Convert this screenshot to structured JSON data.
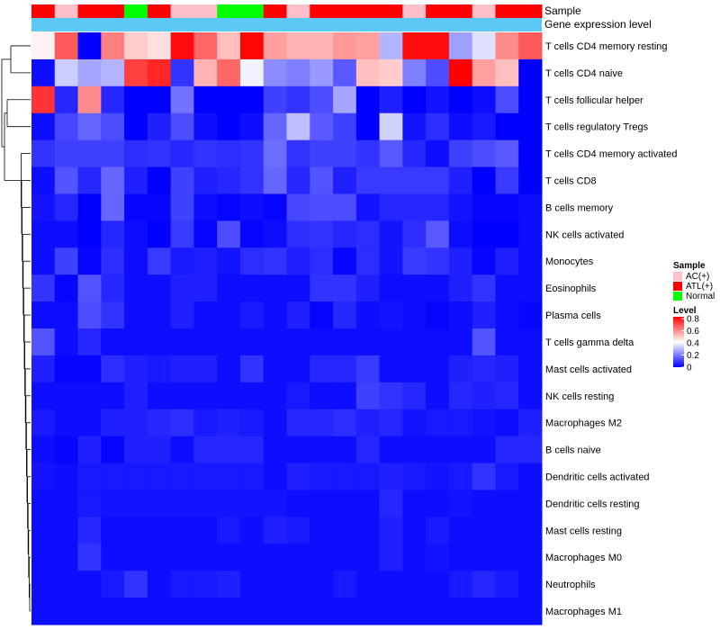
{
  "chart_data": {
    "type": "heatmap",
    "title": "",
    "annotation_labels": {
      "sample": "Sample",
      "gene_expression": "Gene expression level"
    },
    "sample_groups": [
      "ATL(+)",
      "AC(+)",
      "ATL(+)",
      "ATL(+)",
      "Normal",
      "ATL(+)",
      "AC(+)",
      "AC(+)",
      "Normal",
      "Normal",
      "ATL(+)",
      "AC(+)",
      "ATL(+)",
      "ATL(+)",
      "ATL(+)",
      "ATL(+)",
      "AC(+)",
      "ATL(+)",
      "ATL(+)",
      "AC(+)",
      "ATL(+)",
      "ATL(+)"
    ],
    "gene_expression_color": "#5bc8f5",
    "rows": [
      "T cells CD4 memory resting",
      "T cells CD4 naive",
      "T cells follicular helper",
      "T cells regulatory  Tregs",
      "T cells CD4 memory activated",
      "T cells CD8",
      "B cells memory",
      "NK cells activated",
      "Monocytes",
      "Eosinophils",
      "Plasma cells",
      "T cells gamma delta",
      "Mast cells activated",
      "NK cells resting",
      "Macrophages M2",
      "B cells naive",
      "Dendritic cells activated",
      "Dendritic cells resting",
      "Mast cells resting",
      "Macrophages M0",
      "Neutrophils",
      "Macrophages M1"
    ],
    "values": [
      [
        0.42,
        0.66,
        0.0,
        0.6,
        0.48,
        0.45,
        0.78,
        0.64,
        0.5,
        0.79,
        0.55,
        0.52,
        0.52,
        0.56,
        0.55,
        0.28,
        0.78,
        0.78,
        0.25,
        0.35,
        0.58,
        0.66
      ],
      [
        0.02,
        0.32,
        0.26,
        0.28,
        0.7,
        0.74,
        0.08,
        0.52,
        0.64,
        0.38,
        0.22,
        0.2,
        0.24,
        0.14,
        0.5,
        0.48,
        0.2,
        0.12,
        0.8,
        0.55,
        0.5,
        0.0
      ],
      [
        0.72,
        0.06,
        0.58,
        0.06,
        0.0,
        0.0,
        0.18,
        0.0,
        0.0,
        0.0,
        0.1,
        0.08,
        0.12,
        0.26,
        0.0,
        0.05,
        0.0,
        0.03,
        0.0,
        0.02,
        0.12,
        0.0
      ],
      [
        0.02,
        0.11,
        0.16,
        0.12,
        0.0,
        0.05,
        0.12,
        0.02,
        0.0,
        0.02,
        0.16,
        0.3,
        0.14,
        0.1,
        0.0,
        0.33,
        0.03,
        0.07,
        0.02,
        0.04,
        0.0,
        0.0
      ],
      [
        0.08,
        0.1,
        0.1,
        0.1,
        0.07,
        0.08,
        0.06,
        0.08,
        0.07,
        0.08,
        0.17,
        0.08,
        0.1,
        0.1,
        0.08,
        0.14,
        0.06,
        0.02,
        0.1,
        0.12,
        0.14,
        0.0
      ],
      [
        0.02,
        0.13,
        0.06,
        0.16,
        0.05,
        0.0,
        0.1,
        0.05,
        0.06,
        0.08,
        0.16,
        0.06,
        0.13,
        0.05,
        0.09,
        0.09,
        0.09,
        0.09,
        0.05,
        0.0,
        0.09,
        0.0
      ],
      [
        0.03,
        0.06,
        0.0,
        0.16,
        0.01,
        0.01,
        0.1,
        0.02,
        0.01,
        0.02,
        0.01,
        0.11,
        0.12,
        0.12,
        0.03,
        0.06,
        0.06,
        0.06,
        0.03,
        0.01,
        0.01,
        0.02
      ],
      [
        0.02,
        0.02,
        0.0,
        0.06,
        0.02,
        0.0,
        0.09,
        0.01,
        0.12,
        0.01,
        0.02,
        0.07,
        0.08,
        0.06,
        0.07,
        0.03,
        0.07,
        0.14,
        0.02,
        0.0,
        0.0,
        0.02
      ],
      [
        0.02,
        0.1,
        0.01,
        0.07,
        0.02,
        0.09,
        0.04,
        0.05,
        0.03,
        0.07,
        0.08,
        0.05,
        0.07,
        0.01,
        0.07,
        0.03,
        0.09,
        0.08,
        0.05,
        0.01,
        0.05,
        0.02
      ],
      [
        0.08,
        0.01,
        0.13,
        0.06,
        0.02,
        0.02,
        0.05,
        0.05,
        0.02,
        0.02,
        0.02,
        0.02,
        0.08,
        0.08,
        0.05,
        0.02,
        0.02,
        0.02,
        0.05,
        0.08,
        0.02,
        0.02
      ],
      [
        0.02,
        0.02,
        0.12,
        0.08,
        0.02,
        0.02,
        0.05,
        0.02,
        0.02,
        0.04,
        0.02,
        0.05,
        0.01,
        0.06,
        0.02,
        0.03,
        0.02,
        0.01,
        0.02,
        0.05,
        0.02,
        0.01
      ],
      [
        0.13,
        0.02,
        0.06,
        0.02,
        0.02,
        0.02,
        0.02,
        0.02,
        0.02,
        0.02,
        0.02,
        0.02,
        0.02,
        0.02,
        0.02,
        0.02,
        0.02,
        0.02,
        0.02,
        0.13,
        0.02,
        0.02
      ],
      [
        0.05,
        0.01,
        0.01,
        0.07,
        0.05,
        0.04,
        0.05,
        0.05,
        0.02,
        0.08,
        0.02,
        0.02,
        0.06,
        0.06,
        0.09,
        0.02,
        0.02,
        0.02,
        0.05,
        0.06,
        0.05,
        0.02
      ],
      [
        0.02,
        0.02,
        0.02,
        0.02,
        0.05,
        0.02,
        0.02,
        0.02,
        0.02,
        0.02,
        0.02,
        0.04,
        0.02,
        0.02,
        0.1,
        0.08,
        0.06,
        0.02,
        0.06,
        0.05,
        0.06,
        0.02
      ],
      [
        0.04,
        0.02,
        0.02,
        0.05,
        0.05,
        0.06,
        0.07,
        0.04,
        0.05,
        0.04,
        0.02,
        0.06,
        0.06,
        0.07,
        0.05,
        0.06,
        0.03,
        0.04,
        0.04,
        0.03,
        0.02,
        0.05
      ],
      [
        0.02,
        0.01,
        0.05,
        0.01,
        0.05,
        0.05,
        0.02,
        0.06,
        0.06,
        0.06,
        0.02,
        0.02,
        0.02,
        0.02,
        0.06,
        0.02,
        0.02,
        0.02,
        0.02,
        0.02,
        0.06,
        0.06
      ],
      [
        0.03,
        0.02,
        0.04,
        0.04,
        0.04,
        0.04,
        0.04,
        0.04,
        0.04,
        0.04,
        0.02,
        0.05,
        0.04,
        0.04,
        0.04,
        0.05,
        0.04,
        0.03,
        0.04,
        0.08,
        0.04,
        0.02
      ],
      [
        0.02,
        0.02,
        0.04,
        0.03,
        0.03,
        0.03,
        0.03,
        0.03,
        0.03,
        0.03,
        0.03,
        0.02,
        0.02,
        0.02,
        0.02,
        0.06,
        0.02,
        0.02,
        0.03,
        0.02,
        0.02,
        0.02
      ],
      [
        0.02,
        0.02,
        0.06,
        0.02,
        0.02,
        0.02,
        0.02,
        0.02,
        0.04,
        0.02,
        0.05,
        0.04,
        0.02,
        0.02,
        0.02,
        0.05,
        0.02,
        0.04,
        0.02,
        0.02,
        0.02,
        0.02
      ],
      [
        0.02,
        0.02,
        0.08,
        0.02,
        0.02,
        0.02,
        0.02,
        0.02,
        0.02,
        0.02,
        0.02,
        0.02,
        0.02,
        0.02,
        0.02,
        0.05,
        0.02,
        0.03,
        0.02,
        0.02,
        0.02,
        0.02
      ],
      [
        0.02,
        0.02,
        0.02,
        0.04,
        0.08,
        0.02,
        0.04,
        0.04,
        0.05,
        0.02,
        0.02,
        0.02,
        0.02,
        0.04,
        0.02,
        0.02,
        0.02,
        0.02,
        0.04,
        0.06,
        0.04,
        0.02
      ],
      [
        0.02,
        0.02,
        0.02,
        0.02,
        0.02,
        0.02,
        0.02,
        0.02,
        0.02,
        0.02,
        0.02,
        0.02,
        0.02,
        0.02,
        0.02,
        0.02,
        0.02,
        0.02,
        0.02,
        0.02,
        0.02,
        0.02
      ]
    ],
    "colorscale": {
      "low": "#0000ff",
      "mid": "#ffffff",
      "high": "#ff0000",
      "range": [
        0,
        0.8
      ]
    },
    "legend": {
      "sample": {
        "title": "Sample",
        "entries": [
          {
            "label": "AC(+)",
            "color": "#ffc0cb"
          },
          {
            "label": "ATL(+)",
            "color": "#ff0000"
          },
          {
            "label": "Normal",
            "color": "#00ff00"
          }
        ]
      },
      "level": {
        "title": "Level",
        "ticks": [
          "0.8",
          "0.6",
          "0.4",
          "0.2",
          "0"
        ]
      }
    },
    "dendrogram": "row-clustering"
  }
}
